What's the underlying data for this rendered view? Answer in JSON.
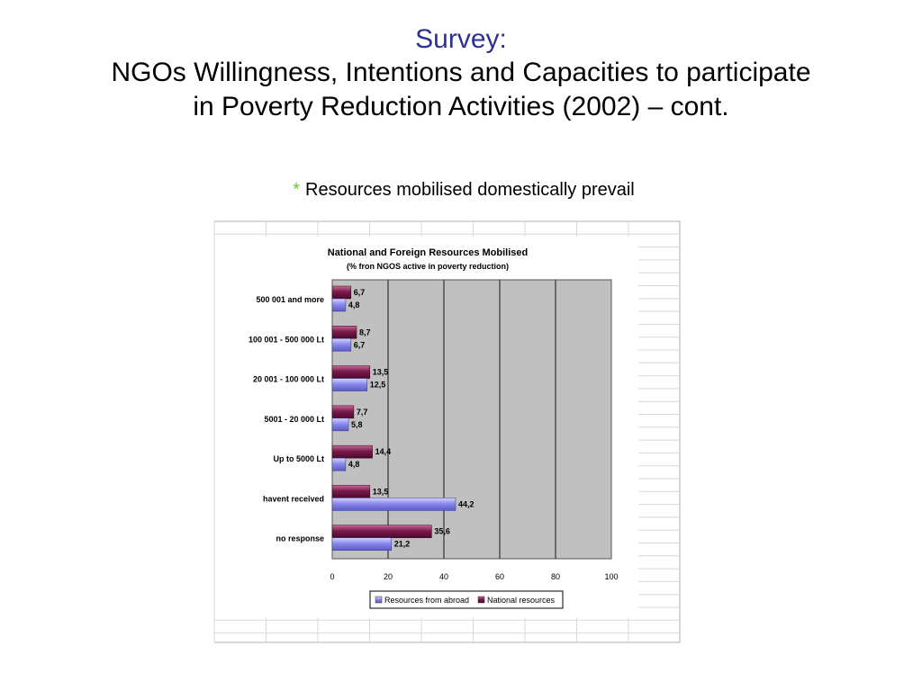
{
  "slide": {
    "title_line1": "Survey:",
    "title_line2": "NGOs Willingness, Intentions and Capacities to participate",
    "title_line3": "in Poverty Reduction Activities (2002) – cont.",
    "bullet_mark": "*",
    "bullet_text": "Resources mobilised domestically prevail"
  },
  "chart_data": {
    "type": "bar",
    "orientation": "horizontal",
    "title": "National and Foreign Resources Mobilised",
    "subtitle": "(% fron NGOS active in poverty reduction)",
    "categories": [
      "500 001 and more",
      "100 001 - 500 000 Lt",
      "20 001 - 100 000 Lt",
      "5001 - 20 000 Lt",
      "Up to 5000 Lt",
      "havent received",
      "no response"
    ],
    "series": [
      {
        "name": "National resources",
        "values": [
          6.7,
          8.7,
          13.5,
          7.7,
          14.4,
          13.5,
          35.6
        ],
        "labels": [
          "6,7",
          "8,7",
          "13,5",
          "7,7",
          "14,4",
          "13,5",
          "35,6"
        ]
      },
      {
        "name": "Resources from abroad",
        "values": [
          4.8,
          6.7,
          12.5,
          5.8,
          4.8,
          44.2,
          21.2
        ],
        "labels": [
          "4,8",
          "6,7",
          "12,5",
          "5,8",
          "4,8",
          "44,2",
          "21,2"
        ]
      }
    ],
    "legend_order": [
      "Resources from abroad",
      "National resources"
    ],
    "xlim": [
      0,
      100
    ],
    "xticks": [
      0,
      20,
      40,
      60,
      80,
      100
    ],
    "grid": true,
    "legend": "bottom",
    "colors": {
      "National resources": "#993366",
      "Resources from abroad": "#9999ff",
      "plot_background": "#c0c0c0"
    }
  }
}
